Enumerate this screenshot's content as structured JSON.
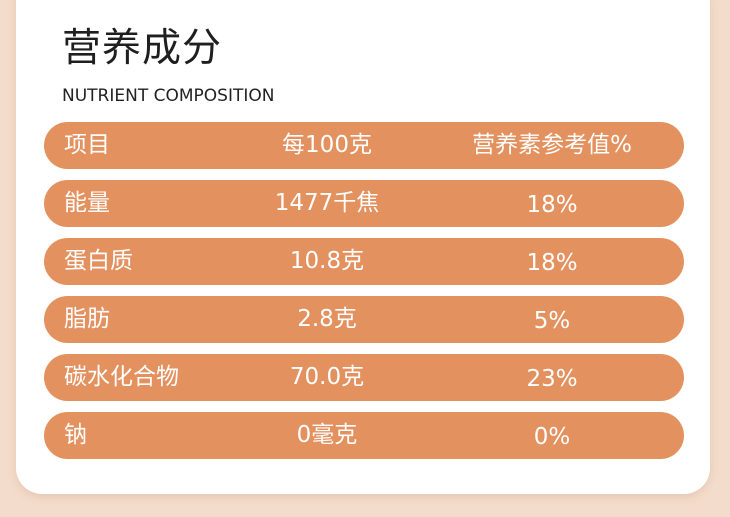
{
  "title": "营养成分",
  "subtitle": "NUTRIENT COMPOSITION",
  "table": {
    "header": [
      "项目",
      "每100克",
      "营养素参考值%"
    ],
    "rows": [
      [
        "能量",
        "1477千焦",
        "18%"
      ],
      [
        "蛋白质",
        "10.8克",
        "18%"
      ],
      [
        "脂肪",
        "2.8克",
        "5%"
      ],
      [
        "碳水化合物",
        "70.0克",
        "23%"
      ],
      [
        "钠",
        "0毫克",
        "0%"
      ]
    ]
  },
  "colors": {
    "row_fill": "#e3915f",
    "background": "#f3dccb",
    "card": "#ffffff"
  }
}
